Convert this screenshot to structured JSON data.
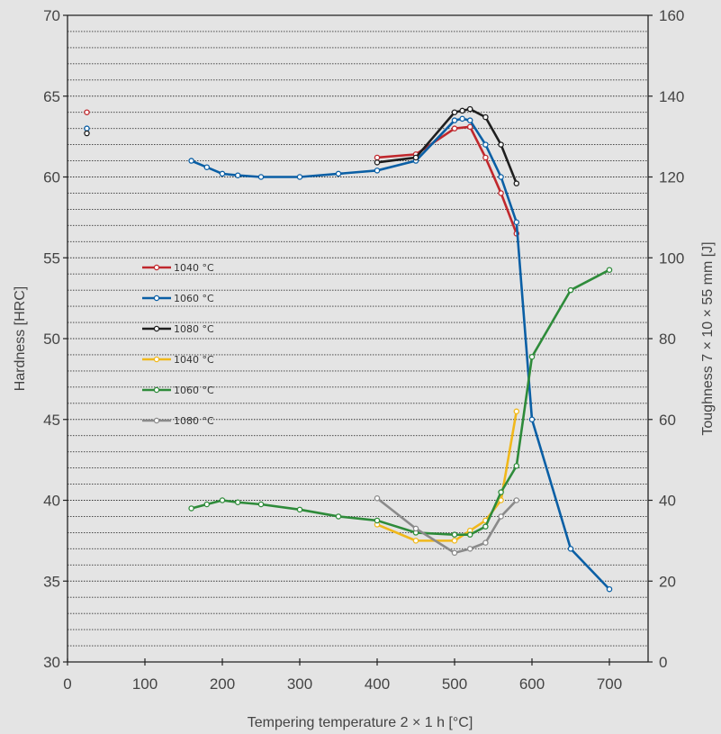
{
  "chart_data": {
    "type": "line",
    "xlabel": "Tempering temperature 2 × 1 h [°C]",
    "ylabel_left": "Hardness [HRC]",
    "ylabel_right": "Toughness 7 × 10 × 55 mm [J]",
    "xlim": [
      0,
      750
    ],
    "ylim_left": [
      30,
      70
    ],
    "ylim_right": [
      0,
      160
    ],
    "x_ticks": [
      0,
      100,
      200,
      300,
      400,
      500,
      600,
      700
    ],
    "y_left_ticks": [
      30,
      35,
      40,
      45,
      50,
      55,
      60,
      65,
      70
    ],
    "y_right_ticks": [
      0,
      20,
      40,
      60,
      80,
      100,
      120,
      140,
      160
    ],
    "grid": "dotted horizontal",
    "legend_position": "left-middle",
    "series": [
      {
        "name": "1040 °C",
        "axis": "left",
        "color": "#c0282d",
        "x": [
          25,
          400,
          450,
          500,
          520,
          540,
          560,
          580
        ],
        "y": [
          64,
          61.2,
          61.4,
          63,
          63.1,
          61.2,
          59,
          56.5
        ]
      },
      {
        "name": "1060 °C",
        "axis": "left",
        "color": "#0a5fa5",
        "x": [
          25,
          160,
          180,
          200,
          220,
          250,
          300,
          350,
          400,
          450,
          500,
          510,
          520,
          540,
          560,
          580,
          600,
          650,
          700
        ],
        "y": [
          63,
          61,
          60.6,
          60.2,
          60.1,
          60,
          60,
          60.2,
          60.4,
          61,
          63.5,
          63.6,
          63.5,
          62,
          60,
          57.2,
          45,
          37,
          34.5
        ]
      },
      {
        "name": "1080 °C",
        "axis": "left",
        "color": "#1e1e1e",
        "x": [
          25,
          400,
          450,
          500,
          510,
          520,
          540,
          560,
          580
        ],
        "y": [
          62.7,
          60.9,
          61.2,
          64,
          64.1,
          64.2,
          63.7,
          62,
          59.6
        ]
      },
      {
        "name": "1040 °C",
        "axis": "right",
        "color": "#f0b81b",
        "x": [
          400,
          450,
          500,
          520,
          540,
          560,
          580
        ],
        "y": [
          34,
          30,
          30,
          32.5,
          35,
          40,
          62
        ]
      },
      {
        "name": "1060 °C",
        "axis": "right",
        "color": "#2e8b3a",
        "x": [
          160,
          180,
          200,
          220,
          250,
          300,
          350,
          400,
          450,
          500,
          520,
          540,
          560,
          580,
          600,
          650,
          700
        ],
        "y": [
          38,
          39,
          40,
          39.5,
          39,
          37.7,
          36,
          35,
          32,
          31.5,
          31.5,
          33.5,
          42,
          48.5,
          75.5,
          92,
          97
        ]
      },
      {
        "name": "1080 °C",
        "axis": "right",
        "color": "#8a8a8a",
        "x": [
          400,
          450,
          500,
          520,
          540,
          560,
          580
        ],
        "y": [
          40.5,
          33,
          27,
          28,
          29.5,
          36,
          40
        ]
      }
    ]
  }
}
